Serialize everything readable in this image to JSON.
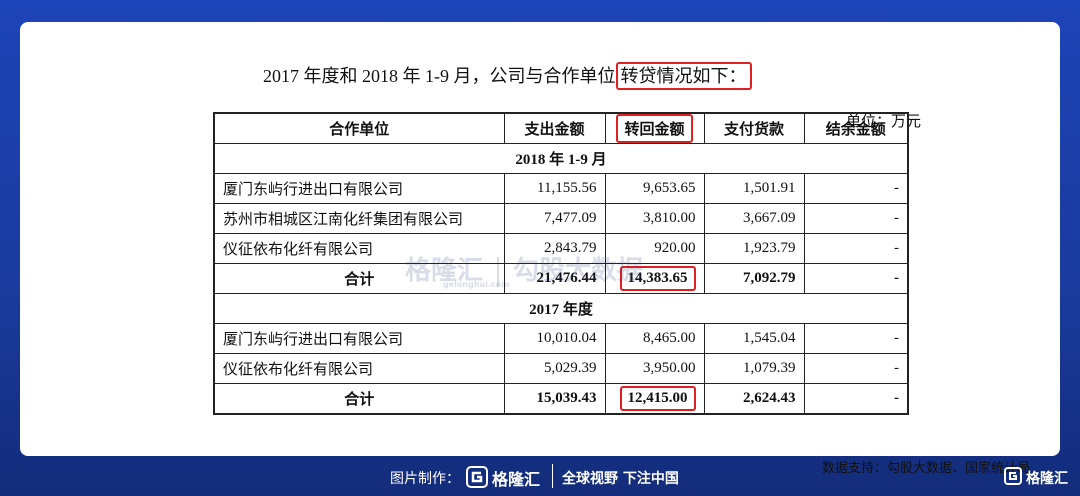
{
  "header": {
    "title": [
      "2017 年度和 2018 年 1-9 月，公司与合作单位",
      "转贷情况如下："
    ],
    "unit": "单位：万元"
  },
  "table": {
    "columns": [
      "合作单位",
      "支出金额",
      "转回金额",
      "支付货款",
      "结余金额"
    ],
    "sections": [
      {
        "label": "2018 年 1-9 月",
        "rows": [
          [
            "厦门东屿行进出口有限公司",
            "11,155.56",
            "9,653.65",
            "1,501.91",
            "-"
          ],
          [
            "苏州市相城区江南化纤集团有限公司",
            "7,477.09",
            "3,810.00",
            "3,667.09",
            "-"
          ],
          [
            "仪征依布化纤有限公司",
            "2,843.79",
            "920.00",
            "1,923.79",
            "-"
          ]
        ],
        "total": [
          "合计",
          "21,476.44",
          "14,383.65",
          "7,092.79",
          "-"
        ]
      },
      {
        "label": "2017 年度",
        "rows": [
          [
            "厦门东屿行进出口有限公司",
            "10,010.04",
            "8,465.00",
            "1,545.04",
            "-"
          ],
          [
            "仪征依布化纤有限公司",
            "5,029.39",
            "3,950.00",
            "1,079.39",
            "-"
          ]
        ],
        "total": [
          "合计",
          "15,039.43",
          "12,415.00",
          "2,624.43",
          "-"
        ]
      }
    ]
  },
  "source": "数据支持：勾股大数据、国家统计局",
  "watermark": {
    "brand": "格隆汇",
    "site": "gelonghui.com",
    "partner": "勾股大数据"
  },
  "footer": {
    "made_by": "图片制作：",
    "brand": "格隆汇",
    "slogan": "全球视野 下注中国",
    "corner_brand": "格隆汇"
  }
}
